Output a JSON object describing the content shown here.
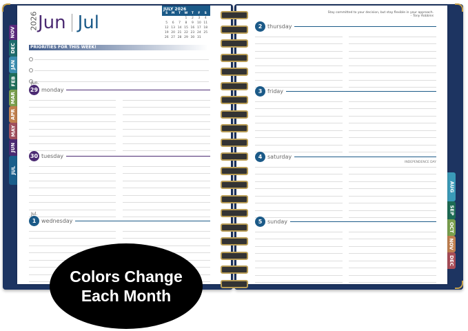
{
  "colors": {
    "cover": "#1d3461",
    "june": "#4b2a72",
    "july": "#1b5a88",
    "gold": "#c9a24a"
  },
  "header": {
    "year": "2026",
    "month1": "Jun",
    "month2": "Jul"
  },
  "mini_calendar": {
    "title": "JULY 2026",
    "weekdays": [
      "S",
      "M",
      "T",
      "W",
      "T",
      "F",
      "S"
    ],
    "rows": [
      [
        "",
        "",
        "",
        "1",
        "2",
        "3",
        "4"
      ],
      [
        "5",
        "6",
        "7",
        "8",
        "9",
        "10",
        "11"
      ],
      [
        "12",
        "13",
        "14",
        "15",
        "16",
        "17",
        "18"
      ],
      [
        "19",
        "20",
        "21",
        "22",
        "23",
        "24",
        "25"
      ],
      [
        "26",
        "27",
        "28",
        "29",
        "30",
        "31",
        ""
      ]
    ]
  },
  "priorities": {
    "title": "PRIORITIES FOR THIS WEEK!"
  },
  "left_tabs": [
    {
      "label": "NOV",
      "color": "#5b2a7c"
    },
    {
      "label": "DEC",
      "color": "#1d6b6b"
    },
    {
      "label": "JAN",
      "color": "#3b8eb0"
    },
    {
      "label": "FEB",
      "color": "#1f6e5a"
    },
    {
      "label": "MAR",
      "color": "#7a9f4e"
    },
    {
      "label": "APR",
      "color": "#c0804e"
    },
    {
      "label": "MAY",
      "color": "#a0505e"
    },
    {
      "label": "JUN",
      "color": "#4b2a72"
    },
    {
      "label": "JUL",
      "color": "#1b5f8c"
    }
  ],
  "right_tabs": [
    {
      "label": "AUG",
      "color": "#3a9ab8"
    },
    {
      "label": "SEP",
      "color": "#1d6b55"
    },
    {
      "label": "OCT",
      "color": "#7aa04e"
    },
    {
      "label": "NOV",
      "color": "#c08050"
    },
    {
      "label": "DEC",
      "color": "#a84d58"
    }
  ],
  "days": [
    {
      "month": "Jun.",
      "num": "29",
      "name": "monday",
      "color": "#4b2a72"
    },
    {
      "month": "",
      "num": "30",
      "name": "tuesday",
      "color": "#4b2a72"
    },
    {
      "month": "Jul.",
      "num": "1",
      "name": "wednesday",
      "color": "#1b5a88"
    },
    {
      "month": "",
      "num": "2",
      "name": "thursday",
      "color": "#1b5a88"
    },
    {
      "month": "",
      "num": "3",
      "name": "friday",
      "color": "#1b5a88"
    },
    {
      "month": "",
      "num": "4",
      "name": "saturday",
      "color": "#1b5a88",
      "holiday": "INDEPENDENCE DAY"
    },
    {
      "month": "",
      "num": "5",
      "name": "sunday",
      "color": "#1b5a88"
    }
  ],
  "quote": {
    "text": "Stay committed to your decision, but stay flexible in your approach.",
    "author": "– Tony Robbins"
  },
  "badge": {
    "line1": "Colors Change",
    "line2": "Each Month"
  }
}
